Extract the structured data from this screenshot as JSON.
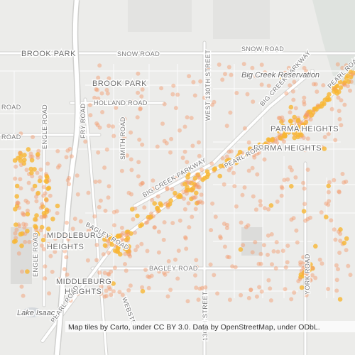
{
  "places": [
    "BROOK PARK",
    "BROOK PARK",
    "PARMA HEIGHTS",
    "PARMA HEIGHTS",
    "MIDDLEBURG",
    "HEIGHTS",
    "MIDDLEBURG",
    "HEIGHTS"
  ],
  "roads": [
    "SNOW ROAD",
    "SNOW ROAD",
    "HOLLAND ROAD",
    "BIG CREEK PARKWAY",
    "BIG CREEK PARKWAY",
    "PEARL ROAD",
    "PEARL ROAD",
    "PEARL ROAD",
    "BAGLEY ROAD",
    "BAGLEY ROAD",
    "ENGLE ROAD",
    "ENGLE ROAD",
    "FRY ROAD",
    "SMITH ROAD",
    "WEST 130TH STREET",
    "130TH STREET",
    "YORK ROAD",
    "WEBSTER",
    "ROAD",
    "ROAD"
  ],
  "water": [
    "Big Creek Reservation",
    "Lake Isaac"
  ],
  "attribution": "Map tiles by Carto, under CC BY 3.0. Data by OpenStreetMap, under ODbL."
}
